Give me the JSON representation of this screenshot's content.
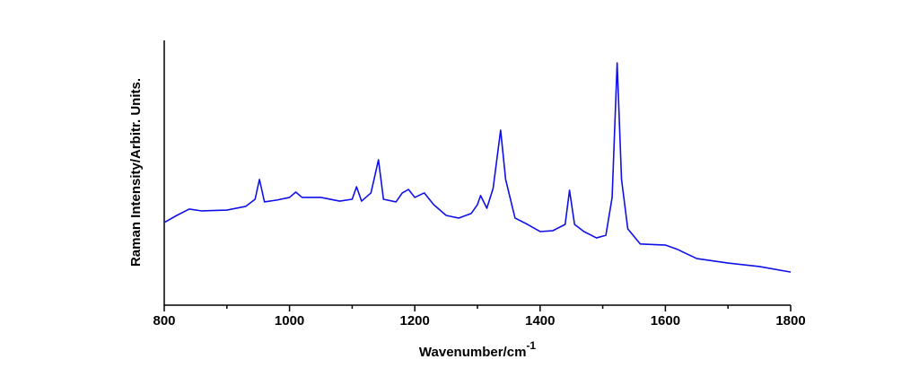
{
  "chart_data": {
    "type": "line",
    "xlabel": {
      "text": "Wavenumber/cm",
      "superscript": "-1"
    },
    "ylabel": "Raman Intensity/Arbitr. Units.",
    "xlim": [
      800,
      1800
    ],
    "xticks": [
      800,
      1000,
      1200,
      1400,
      1600,
      1800
    ],
    "xminorticks": [
      900,
      1100,
      1300,
      1500,
      1700
    ],
    "ylim": [
      0,
      100
    ],
    "x": [
      800,
      820,
      840,
      860,
      900,
      930,
      945,
      952,
      960,
      980,
      1000,
      1010,
      1020,
      1050,
      1080,
      1100,
      1107,
      1115,
      1130,
      1142,
      1150,
      1170,
      1180,
      1190,
      1200,
      1215,
      1230,
      1250,
      1270,
      1290,
      1300,
      1305,
      1315,
      1325,
      1337,
      1345,
      1360,
      1380,
      1400,
      1420,
      1440,
      1447,
      1455,
      1470,
      1490,
      1505,
      1515,
      1523,
      1530,
      1540,
      1560,
      1600,
      1620,
      1650,
      1700,
      1750,
      1800
    ],
    "series": [
      {
        "color": "#1010e8",
        "values": [
          31.2,
          33.9,
          36.3,
          35.6,
          35.9,
          37.3,
          40.0,
          47.5,
          39.0,
          39.7,
          40.7,
          42.7,
          40.7,
          40.7,
          39.3,
          40.0,
          44.7,
          39.3,
          42.4,
          54.9,
          40.0,
          39.0,
          42.4,
          43.7,
          40.7,
          42.4,
          38.0,
          33.9,
          32.9,
          34.6,
          38.0,
          41.4,
          36.6,
          44.1,
          66.1,
          47.5,
          32.9,
          30.5,
          27.8,
          28.1,
          30.5,
          43.4,
          30.5,
          27.8,
          25.4,
          26.4,
          40.7,
          91.5,
          47.5,
          28.8,
          23.1,
          22.7,
          21.0,
          17.6,
          15.9,
          14.6,
          12.5
        ]
      }
    ]
  }
}
